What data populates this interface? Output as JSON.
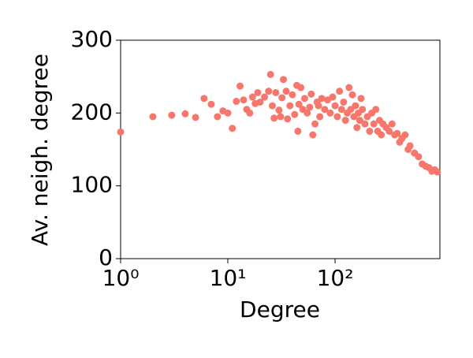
{
  "chart_data": {
    "type": "scatter",
    "x_label": "Degree",
    "y_label": "Av. neigh. degree",
    "color": "#f7776d",
    "log_x": true,
    "xlim": [
      1,
      950
    ],
    "ylim": [
      0,
      300
    ],
    "xticks": [
      {
        "value": 1,
        "label": "10⁰"
      },
      {
        "value": 10,
        "label": "10¹"
      },
      {
        "value": 100,
        "label": "10²"
      }
    ],
    "yticks": [
      0,
      100,
      200,
      300
    ],
    "x": [
      1,
      2,
      3,
      4,
      5,
      6,
      7,
      8,
      9,
      10,
      11,
      12,
      13,
      14,
      15,
      16,
      17,
      18,
      19,
      20,
      22,
      24,
      25,
      26,
      27,
      28,
      30,
      31,
      32,
      33,
      35,
      36,
      38,
      40,
      42,
      44,
      45,
      46,
      48,
      50,
      52,
      55,
      58,
      60,
      62,
      65,
      68,
      70,
      72,
      75,
      80,
      85,
      90,
      95,
      100,
      105,
      110,
      115,
      120,
      125,
      130,
      135,
      140,
      145,
      150,
      155,
      160,
      165,
      170,
      175,
      180,
      190,
      200,
      210,
      220,
      230,
      240,
      250,
      260,
      270,
      280,
      300,
      320,
      340,
      360,
      380,
      400,
      420,
      450,
      480,
      500,
      550,
      600,
      650,
      700,
      750,
      800,
      850,
      900
    ],
    "y": [
      174,
      195,
      197,
      199,
      194,
      220,
      212,
      195,
      203,
      200,
      179,
      216,
      237,
      218,
      205,
      200,
      222,
      213,
      228,
      215,
      222,
      230,
      253,
      210,
      193,
      228,
      204,
      195,
      221,
      246,
      230,
      192,
      210,
      225,
      198,
      238,
      175,
      212,
      235,
      205,
      220,
      200,
      208,
      226,
      170,
      185,
      215,
      210,
      195,
      220,
      205,
      218,
      200,
      222,
      210,
      195,
      230,
      205,
      215,
      190,
      200,
      235,
      205,
      225,
      195,
      210,
      180,
      200,
      190,
      220,
      205,
      185,
      195,
      175,
      200,
      185,
      205,
      175,
      190,
      170,
      185,
      180,
      175,
      185,
      170,
      172,
      160,
      165,
      170,
      150,
      155,
      145,
      140,
      130,
      127,
      125,
      120,
      122,
      119
    ]
  }
}
